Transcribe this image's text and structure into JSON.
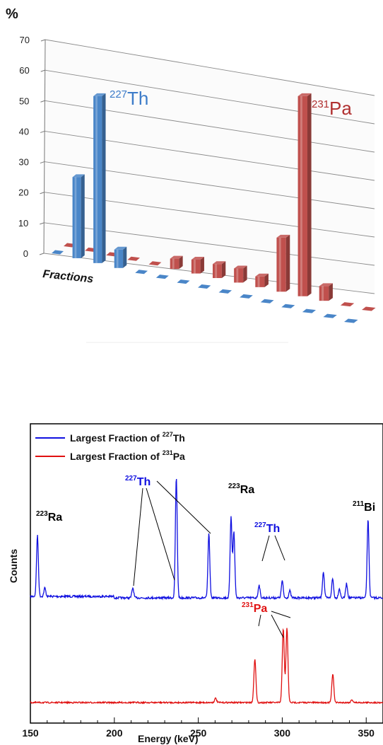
{
  "chart_data": [
    {
      "type": "bar",
      "ylabel": "%",
      "xlabel": "Fractions",
      "ylim": [
        0,
        70
      ],
      "yticks": [
        0,
        10,
        20,
        30,
        40,
        50,
        60,
        70
      ],
      "fraction_count": 15,
      "series": [
        {
          "label_mass": "227",
          "label_sym": "Th",
          "color": "#4a86c8",
          "values": [
            0,
            27,
            55,
            6,
            1,
            1,
            1,
            1,
            1,
            1,
            1,
            1,
            1,
            1,
            1
          ]
        },
        {
          "label_mass": "231",
          "label_sym": "Pa",
          "color": "#c0504d",
          "values": [
            0,
            0,
            0,
            0,
            1,
            3,
            4,
            4,
            4,
            3,
            15,
            55,
            4,
            1,
            1
          ]
        }
      ]
    },
    {
      "type": "line",
      "xlabel": "Energy (keV)",
      "ylabel": "Counts",
      "xlim": [
        150,
        360
      ],
      "xticks": [
        150,
        200,
        250,
        300,
        350
      ],
      "legend": [
        {
          "prefix": "Largest Fraction of ",
          "mass": "227",
          "sym": "Th",
          "color": "#1010e0"
        },
        {
          "prefix": "Largest Fraction of ",
          "mass": "231",
          "sym": "Pa",
          "color": "#e01010"
        }
      ],
      "series": [
        {
          "name": "Largest Fraction of 227Th",
          "color": "#1010e0",
          "peaks": [
            [
              154.2,
              86
            ],
            [
              158.6,
              12
            ],
            [
              211,
              14
            ],
            [
              236.9,
              170
            ],
            [
              256.3,
              90
            ],
            [
              269.5,
              115
            ],
            [
              271.2,
              93
            ],
            [
              286.2,
              18
            ],
            [
              300.0,
              24
            ],
            [
              304.5,
              10
            ],
            [
              324.5,
              37
            ],
            [
              330.0,
              27
            ],
            [
              334.0,
              13
            ],
            [
              338.3,
              20
            ],
            [
              351.1,
              110
            ]
          ]
        },
        {
          "name": "Largest Fraction of 231Pa",
          "color": "#e01010",
          "peaks": [
            [
              260.3,
              6
            ],
            [
              283.7,
              62
            ],
            [
              300.6,
              105
            ],
            [
              302.8,
              105
            ],
            [
              330.1,
              40
            ],
            [
              341.5,
              4
            ]
          ]
        }
      ],
      "annotations": [
        {
          "mass": "223",
          "sym": "Ra",
          "color": "#000000"
        },
        {
          "mass": "227",
          "sym": "Th",
          "color": "#1010e0"
        },
        {
          "mass": "223",
          "sym": "Ra",
          "color": "#000000"
        },
        {
          "mass": "227",
          "sym": "Th",
          "color": "#1010e0"
        },
        {
          "mass": "211",
          "sym": "Bi",
          "color": "#000000"
        },
        {
          "mass": "231",
          "sym": "Pa",
          "color": "#e01010"
        }
      ]
    }
  ]
}
